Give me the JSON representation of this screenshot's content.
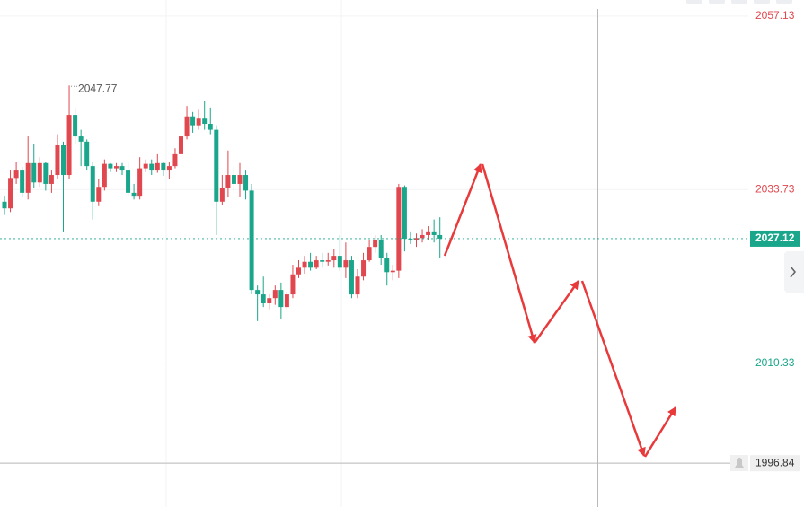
{
  "chart_data": {
    "type": "candlestick",
    "open": [
      2032.1,
      2031.2,
      2035.3,
      2036.3,
      2033.3,
      2037.3,
      2034.7,
      2037.3,
      2034.5,
      2035.7,
      2039.7,
      2035.7,
      2043.8,
      2040.9,
      2040.2,
      2036.9,
      2032.1,
      2034.1,
      2037.2,
      2036.6,
      2036.9,
      2036.3,
      2033.3,
      2032.9,
      2036.6,
      2037.2,
      2036.3,
      2037.3,
      2036.3,
      2036.9,
      2038.5,
      2040.9,
      2043.6,
      2042.4,
      2043.3,
      2042.6,
      2041.8,
      2032.1,
      2033.9,
      2035.7,
      2034.5,
      2035.7,
      2033.6,
      2020.2,
      2019.6,
      2018.4,
      2019.1,
      2020.2,
      2017.9,
      2019.6,
      2022.3,
      2023.2,
      2024.0,
      2023.2,
      2024.2,
      2024.0,
      2024.2,
      2024.8,
      2023.2,
      2024.2,
      2019.6,
      2022.0,
      2024.2,
      2026.0,
      2026.9,
      2024.5,
      2022.6,
      2022.8,
      2034.1,
      2027.1,
      2026.9,
      2027.2,
      2027.6,
      2028.1,
      2027.6
    ],
    "high": [
      2032.9,
      2036.3,
      2037.5,
      2036.8,
      2040.9,
      2039.9,
      2038.1,
      2037.5,
      2036.3,
      2041.2,
      2040.2,
      2047.77,
      2044.8,
      2041.8,
      2040.5,
      2037.5,
      2035.1,
      2037.8,
      2037.3,
      2037.3,
      2037.3,
      2037.5,
      2034.5,
      2038.1,
      2037.8,
      2037.8,
      2038.5,
      2037.5,
      2037.5,
      2039.3,
      2041.8,
      2045.0,
      2044.2,
      2044.5,
      2045.7,
      2044.8,
      2042.4,
      2035.7,
      2039.0,
      2036.9,
      2037.3,
      2036.3,
      2034.5,
      2020.8,
      2022.0,
      2019.6,
      2020.8,
      2021.2,
      2020.0,
      2023.6,
      2024.2,
      2024.8,
      2025.2,
      2024.8,
      2025.2,
      2025.2,
      2025.7,
      2027.6,
      2026.6,
      2024.8,
      2023.0,
      2025.2,
      2026.9,
      2027.6,
      2027.6,
      2025.2,
      2023.6,
      2034.5,
      2034.3,
      2028.1,
      2027.8,
      2028.4,
      2028.8,
      2029.7,
      2030.0
    ],
    "low": [
      2030.3,
      2030.7,
      2034.5,
      2032.7,
      2032.4,
      2033.9,
      2034.1,
      2033.6,
      2033.3,
      2035.1,
      2028.1,
      2035.1,
      2039.9,
      2036.9,
      2036.3,
      2029.7,
      2031.5,
      2033.6,
      2036.1,
      2036.1,
      2035.7,
      2032.7,
      2032.4,
      2032.4,
      2036.1,
      2035.7,
      2036.0,
      2035.6,
      2035.1,
      2036.6,
      2038.0,
      2040.5,
      2041.4,
      2041.8,
      2041.8,
      2041.2,
      2027.6,
      2031.7,
      2032.7,
      2033.6,
      2032.7,
      2032.4,
      2019.6,
      2016.0,
      2017.9,
      2017.6,
      2018.2,
      2016.3,
      2017.6,
      2019.1,
      2021.8,
      2022.4,
      2022.8,
      2023.0,
      2023.2,
      2023.5,
      2023.2,
      2022.8,
      2021.8,
      2019.1,
      2019.1,
      2021.5,
      2024.0,
      2025.2,
      2023.6,
      2020.8,
      2021.5,
      2021.8,
      2025.4,
      2026.4,
      2026.0,
      2026.6,
      2026.9,
      2026.6,
      2024.5
    ],
    "close": [
      2031.2,
      2035.3,
      2036.3,
      2033.3,
      2037.3,
      2034.7,
      2037.3,
      2034.5,
      2035.7,
      2039.7,
      2035.7,
      2043.8,
      2040.9,
      2040.2,
      2036.9,
      2032.1,
      2034.1,
      2037.2,
      2036.6,
      2036.9,
      2036.3,
      2033.3,
      2032.9,
      2036.6,
      2037.2,
      2036.3,
      2037.3,
      2036.3,
      2036.9,
      2038.5,
      2040.9,
      2043.6,
      2042.4,
      2043.3,
      2042.6,
      2041.8,
      2032.1,
      2033.9,
      2035.7,
      2034.5,
      2035.7,
      2033.6,
      2020.2,
      2019.6,
      2018.4,
      2019.1,
      2020.2,
      2017.9,
      2019.6,
      2022.3,
      2023.2,
      2024.0,
      2023.2,
      2024.2,
      2024.0,
      2024.2,
      2024.8,
      2023.2,
      2024.2,
      2019.6,
      2022.0,
      2024.2,
      2026.0,
      2026.9,
      2024.5,
      2022.6,
      2022.8,
      2034.1,
      2027.1,
      2026.9,
      2027.2,
      2027.6,
      2028.1,
      2027.6,
      2027.12
    ],
    "up_color": "#e0474f",
    "down_color": "#19a68a",
    "ylim": [
      1990.93,
      2059.3
    ],
    "yticks": [
      2057.13,
      2033.73,
      2010.33
    ],
    "grid": true,
    "last_price": 2027.12,
    "crosshair_price": 1996.84
  }
}
